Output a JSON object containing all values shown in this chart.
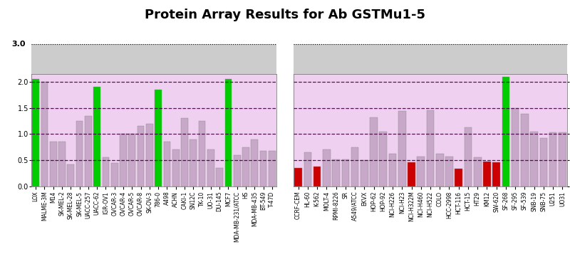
{
  "title": "Protein Array Results for Ab GSTMu1-5",
  "panel1_labels": [
    "LOX",
    "MALME-3M",
    "M14",
    "SK-MEL-2",
    "SK-MEL-28",
    "SK-MEL-5",
    "UACC-257",
    "UACC-62",
    "IGR-OV1",
    "OVCAR-3",
    "OVCAR-4",
    "OVCAR-5",
    "OVCAR-8",
    "SK-OV-3",
    "786-0",
    "A498",
    "ACHN",
    "CAKI-1",
    "SN12C",
    "TK-10",
    "UO-31",
    "DU-145",
    "MCF7",
    "MDA-MB-231/ATCC",
    "HS",
    "MDA-MB-435",
    "BT-549",
    "T-47D"
  ],
  "panel1_values": [
    2.05,
    2.0,
    0.85,
    0.85,
    0.42,
    1.25,
    1.35,
    1.9,
    0.55,
    0.45,
    1.0,
    1.0,
    1.15,
    1.2,
    1.85,
    0.85,
    0.7,
    1.3,
    0.9,
    1.25,
    0.7,
    0.35,
    2.05,
    0.6,
    0.75,
    0.9,
    0.68,
    0.68
  ],
  "panel1_colors": [
    "#00cc00",
    "#c8a8c8",
    "#c8a8c8",
    "#c8a8c8",
    "#c8a8c8",
    "#c8a8c8",
    "#c8a8c8",
    "#00cc00",
    "#c8a8c8",
    "#c8a8c8",
    "#c8a8c8",
    "#c8a8c8",
    "#c8a8c8",
    "#c8a8c8",
    "#00cc00",
    "#c8a8c8",
    "#c8a8c8",
    "#c8a8c8",
    "#c8a8c8",
    "#c8a8c8",
    "#c8a8c8",
    "#c8a8c8",
    "#00cc00",
    "#c8a8c8",
    "#c8a8c8",
    "#c8a8c8",
    "#c8a8c8",
    "#c8a8c8"
  ],
  "panel2_labels": [
    "CCRF-CEM",
    "HL-60",
    "K-562",
    "MOLT-4",
    "RPMI-8226",
    "SR",
    "A549/ATCC",
    "EKVX",
    "HOP-62",
    "HOP-92",
    "NCI-H226",
    "NCI-H23",
    "NCI-H322M",
    "NCI-H460",
    "NCI-H522",
    "COLO",
    "HCC-2998",
    "HCT-116",
    "HCT-15",
    "HT29",
    "KM12",
    "SW-620",
    "SF-268",
    "SF-295",
    "SF-539",
    "SNB-19",
    "SNB-75",
    "U251",
    "UO31"
  ],
  "panel2_values": [
    0.35,
    0.65,
    0.38,
    0.7,
    0.52,
    0.52,
    0.74,
    0.5,
    1.32,
    1.04,
    0.62,
    1.44,
    0.46,
    0.57,
    1.46,
    0.63,
    0.57,
    0.34,
    1.13,
    0.55,
    0.48,
    0.46,
    2.1,
    1.5,
    1.38,
    1.04,
    0.93,
    1.03,
    1.03
  ],
  "panel2_colors": [
    "#cc0000",
    "#c8a8c8",
    "#cc0000",
    "#c8a8c8",
    "#c8a8c8",
    "#c8a8c8",
    "#c8a8c8",
    "#c8a8c8",
    "#c8a8c8",
    "#c8a8c8",
    "#c8a8c8",
    "#c8a8c8",
    "#cc0000",
    "#c8a8c8",
    "#c8a8c8",
    "#c8a8c8",
    "#c8a8c8",
    "#cc0000",
    "#c8a8c8",
    "#c8a8c8",
    "#cc0000",
    "#cc0000",
    "#00cc00",
    "#c8a8c8",
    "#c8a8c8",
    "#c8a8c8",
    "#c8a8c8",
    "#c8a8c8",
    "#c8a8c8"
  ],
  "ylim_plot": [
    0.0,
    2.15
  ],
  "ylim_full": [
    0.0,
    3.0
  ],
  "grey_threshold": 2.1,
  "dashed_lines": [
    0.5,
    1.0,
    1.5,
    2.0
  ],
  "plot_bg_color": "#f0d0f0",
  "grey_bg_color": "#cccccc",
  "white_bg_color": "#ffffff",
  "bar_edge_color": "#888888",
  "title_fontsize": 13,
  "tick_label_fontsize": 5.5,
  "ytick_fontsize": 7
}
